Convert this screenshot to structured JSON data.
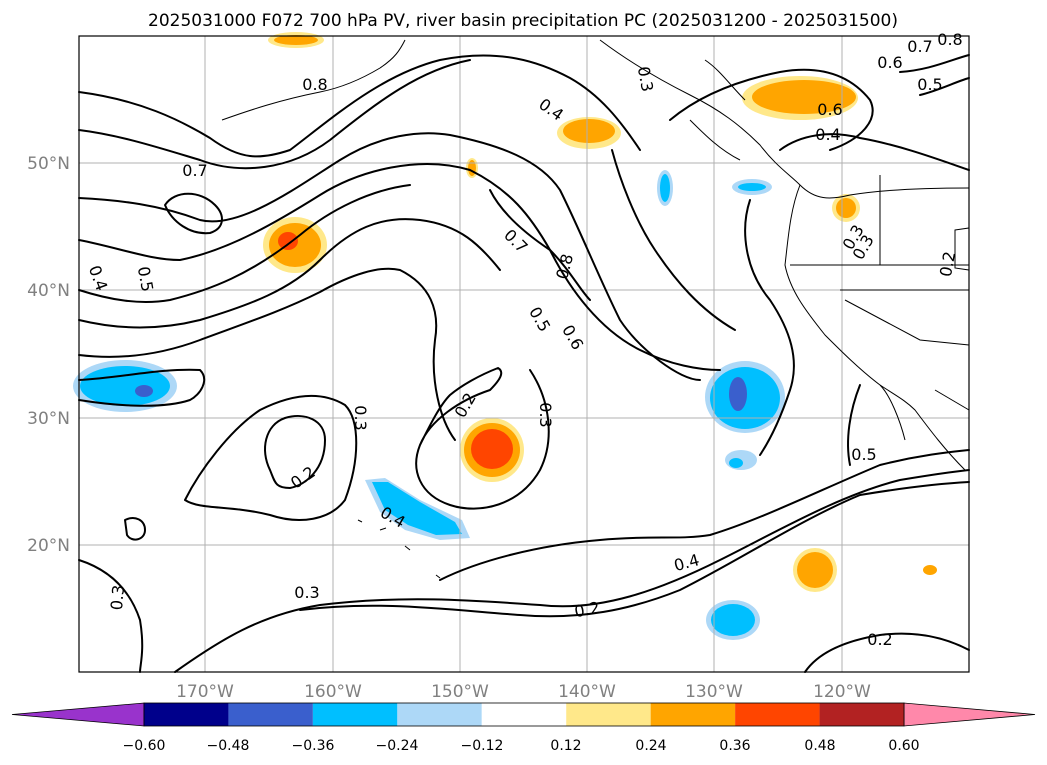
{
  "title": "2025031000 F072 700 hPa PV, river basin precipitation PC (2025031200 - 2025031500)",
  "map": {
    "lat_labels": [
      "50°N",
      "40°N",
      "30°N",
      "20°N"
    ],
    "lon_labels": [
      "170°W",
      "160°W",
      "150°W",
      "140°W",
      "130°W",
      "120°W"
    ],
    "contour_labels": [
      "0.8",
      "0.4",
      "0.3",
      "0.7",
      "0.6",
      "0.5",
      "0.7",
      "0.8",
      "0.6",
      "0.4",
      "0.5",
      "0.4",
      "0.3",
      "0.2",
      "0.7",
      "0.8",
      "0.3",
      "0.5",
      "0.6",
      "0.3",
      "0.2",
      "0.3",
      "0.2",
      "0.4",
      "0.5",
      "0.3",
      "0.4",
      "0.2",
      "0.2",
      "0.3"
    ]
  },
  "colorbar": {
    "ticks": [
      "−0.60",
      "−0.48",
      "−0.36",
      "−0.24",
      "−0.12",
      "0.12",
      "0.24",
      "0.36",
      "0.48",
      "0.60"
    ],
    "colors": [
      "#9933cc",
      "#00008b",
      "#3a5fcd",
      "#00bfff",
      "#add8f7",
      "#ffffff",
      "#ffe88a",
      "#ffa500",
      "#ff4500",
      "#b22222",
      "#ff88aa"
    ]
  },
  "colors": {
    "pos_light": "#ffe88a",
    "pos_mid": "#ffa500",
    "pos_strong": "#ff4500",
    "neg_light": "#add8f7",
    "neg_mid": "#00bfff",
    "neg_strong": "#3a5fcd"
  }
}
